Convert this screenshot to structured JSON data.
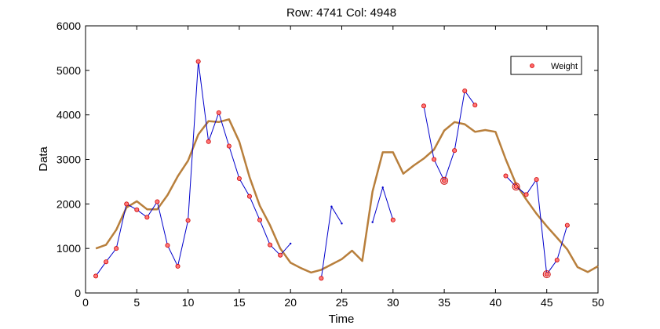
{
  "chart_data": {
    "type": "line",
    "title": "Row: 4741  Col: 4948",
    "xlabel": "Time",
    "ylabel": "Data",
    "xlim": [
      0,
      50
    ],
    "ylim": [
      0,
      6000
    ],
    "x_ticks": [
      0,
      5,
      10,
      15,
      20,
      25,
      30,
      35,
      40,
      45,
      50
    ],
    "y_ticks": [
      0,
      1000,
      2000,
      3000,
      4000,
      5000,
      6000
    ],
    "grid": false,
    "legend": {
      "entries": [
        "Weight"
      ],
      "position": "top-right"
    },
    "colors": {
      "observed": "#0000cc",
      "marker": "#cc0000",
      "fitted": "#b87f3c"
    },
    "series": [
      {
        "name": "Weight",
        "style": "line-with-markers",
        "segments": [
          [
            [
              1,
              380
            ],
            [
              2,
              700
            ],
            [
              3,
              1000
            ],
            [
              4,
              2000
            ],
            [
              5,
              1870
            ],
            [
              6,
              1700
            ],
            [
              7,
              2050
            ],
            [
              8,
              1070
            ],
            [
              9,
              600
            ],
            [
              10,
              1630
            ],
            [
              11,
              5200
            ],
            [
              12,
              3400
            ],
            [
              13,
              4050
            ],
            [
              14,
              3300
            ],
            [
              15,
              2570
            ],
            [
              16,
              2170
            ],
            [
              17,
              1640
            ],
            [
              18,
              1080
            ],
            [
              19,
              850
            ],
            [
              20,
              1110
            ]
          ],
          [
            [
              23,
              330
            ],
            [
              24,
              1940
            ],
            [
              25,
              1560
            ]
          ],
          [
            [
              28,
              1590
            ],
            [
              29,
              2370
            ],
            [
              30,
              1640
            ]
          ],
          [
            [
              33,
              4200
            ],
            [
              34,
              3000
            ],
            [
              35,
              2520
            ],
            [
              36,
              3200
            ],
            [
              37,
              4540
            ],
            [
              38,
              4220
            ]
          ],
          [
            [
              41,
              2630
            ],
            [
              42,
              2390
            ],
            [
              43,
              2210
            ],
            [
              44,
              2550
            ],
            [
              45,
              420
            ],
            [
              46,
              740
            ],
            [
              47,
              1520
            ]
          ]
        ],
        "marked_points": [
          [
            1,
            380
          ],
          [
            2,
            700
          ],
          [
            3,
            1000
          ],
          [
            4,
            2000
          ],
          [
            5,
            1870
          ],
          [
            6,
            1700
          ],
          [
            7,
            2050
          ],
          [
            8,
            1070
          ],
          [
            9,
            600
          ],
          [
            10,
            1630
          ],
          [
            11,
            5200
          ],
          [
            12,
            3400
          ],
          [
            13,
            4050
          ],
          [
            14,
            3300
          ],
          [
            15,
            2570
          ],
          [
            16,
            2170
          ],
          [
            17,
            1640
          ],
          [
            18,
            1080
          ],
          [
            19,
            850
          ],
          [
            23,
            330
          ],
          [
            30,
            1640
          ],
          [
            33,
            4200
          ],
          [
            34,
            3000
          ],
          [
            35,
            2520
          ],
          [
            36,
            3200
          ],
          [
            37,
            4540
          ],
          [
            38,
            4220
          ],
          [
            41,
            2630
          ],
          [
            42,
            2390
          ],
          [
            43,
            2210
          ],
          [
            44,
            2550
          ],
          [
            45,
            420
          ],
          [
            46,
            740
          ],
          [
            47,
            1520
          ]
        ],
        "large_markers": [
          [
            35,
            2520
          ],
          [
            42,
            2390
          ],
          [
            45,
            420
          ]
        ]
      },
      {
        "style": "fitted-line",
        "x": [
          1,
          2,
          3,
          4,
          5,
          6,
          7,
          8,
          9,
          10,
          11,
          12,
          13,
          14,
          15,
          16,
          17,
          18,
          19,
          20,
          21,
          22,
          23,
          24,
          25,
          26,
          27,
          28,
          29,
          30,
          31,
          32,
          33,
          34,
          35,
          36,
          37,
          38,
          39,
          40,
          41,
          42,
          43,
          44,
          45,
          46,
          47,
          48,
          49,
          50
        ],
        "y": [
          1000,
          1080,
          1420,
          1920,
          2060,
          1880,
          1880,
          2200,
          2620,
          2970,
          3560,
          3860,
          3840,
          3900,
          3400,
          2600,
          1960,
          1520,
          1000,
          680,
          560,
          460,
          520,
          640,
          760,
          950,
          720,
          2280,
          3160,
          3160,
          2680,
          2860,
          3020,
          3220,
          3650,
          3840,
          3790,
          3620,
          3660,
          3620,
          3000,
          2450,
          2100,
          1780,
          1500,
          1240,
          980,
          580,
          470,
          600
        ]
      }
    ]
  }
}
